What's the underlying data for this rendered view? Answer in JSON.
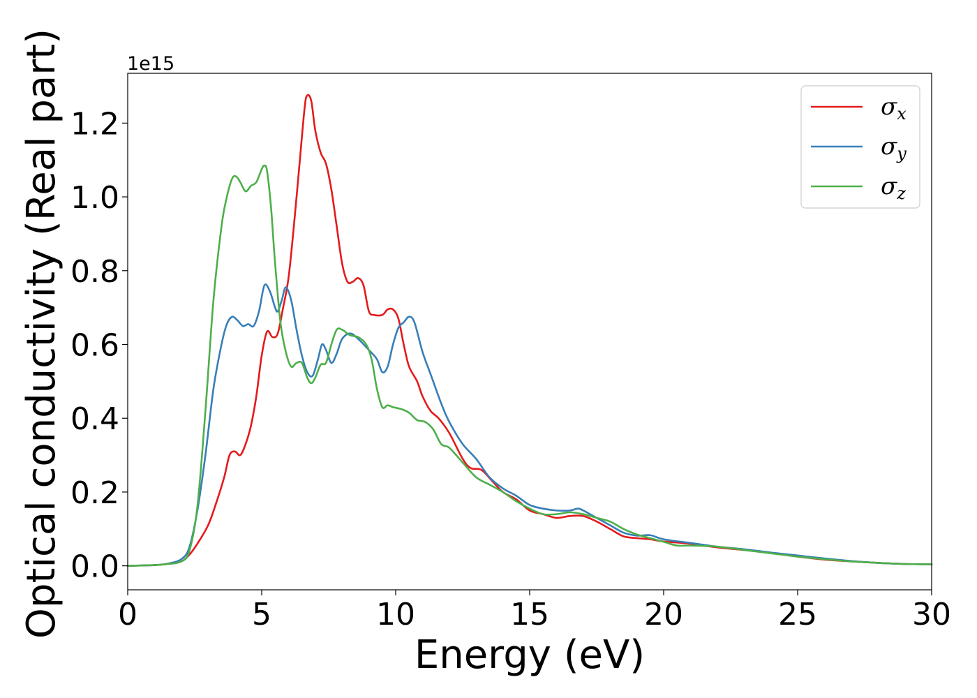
{
  "chart_data": {
    "type": "line",
    "title": "",
    "xlabel": "Energy (eV)",
    "ylabel": "Optical conductivity (Real part)",
    "y_offset_label": "1e15",
    "y_scale": 1000000000000000.0,
    "xlim": [
      0,
      30
    ],
    "ylim": [
      -0.065,
      1.335
    ],
    "x_ticks": [
      0,
      5,
      10,
      15,
      20,
      25,
      30
    ],
    "x_tick_labels": [
      "0",
      "5",
      "10",
      "15",
      "20",
      "25",
      "30"
    ],
    "y_ticks": [
      0.0,
      0.2,
      0.4,
      0.6,
      0.8,
      1.0,
      1.2
    ],
    "y_tick_labels": [
      "0.0",
      "0.2",
      "0.4",
      "0.6",
      "0.8",
      "1.0",
      "1.2"
    ],
    "grid": false,
    "legend_position": "top-right",
    "series": [
      {
        "name": "σx",
        "symbol": "σ",
        "subscript": "x",
        "color": "#e41a1c",
        "points": [
          [
            0,
            0
          ],
          [
            1,
            0.002
          ],
          [
            1.5,
            0.005
          ],
          [
            2,
            0.012
          ],
          [
            2.3,
            0.03
          ],
          [
            2.6,
            0.06
          ],
          [
            3.0,
            0.11
          ],
          [
            3.3,
            0.17
          ],
          [
            3.6,
            0.24
          ],
          [
            3.8,
            0.3
          ],
          [
            4.0,
            0.31
          ],
          [
            4.2,
            0.3
          ],
          [
            4.4,
            0.33
          ],
          [
            4.6,
            0.38
          ],
          [
            4.8,
            0.46
          ],
          [
            5.0,
            0.57
          ],
          [
            5.2,
            0.635
          ],
          [
            5.4,
            0.62
          ],
          [
            5.6,
            0.63
          ],
          [
            5.8,
            0.7
          ],
          [
            6.0,
            0.78
          ],
          [
            6.2,
            0.92
          ],
          [
            6.4,
            1.08
          ],
          [
            6.6,
            1.24
          ],
          [
            6.7,
            1.275
          ],
          [
            6.85,
            1.26
          ],
          [
            7.0,
            1.18
          ],
          [
            7.2,
            1.12
          ],
          [
            7.4,
            1.09
          ],
          [
            7.6,
            1.02
          ],
          [
            7.8,
            0.92
          ],
          [
            8.0,
            0.82
          ],
          [
            8.2,
            0.77
          ],
          [
            8.4,
            0.77
          ],
          [
            8.6,
            0.78
          ],
          [
            8.8,
            0.76
          ],
          [
            9.0,
            0.69
          ],
          [
            9.2,
            0.68
          ],
          [
            9.5,
            0.68
          ],
          [
            9.7,
            0.695
          ],
          [
            9.9,
            0.695
          ],
          [
            10.1,
            0.67
          ],
          [
            10.3,
            0.6
          ],
          [
            10.5,
            0.54
          ],
          [
            10.8,
            0.5
          ],
          [
            11.0,
            0.46
          ],
          [
            11.3,
            0.42
          ],
          [
            11.6,
            0.4
          ],
          [
            12.0,
            0.36
          ],
          [
            12.5,
            0.29
          ],
          [
            12.8,
            0.265
          ],
          [
            13.2,
            0.26
          ],
          [
            13.6,
            0.23
          ],
          [
            14.0,
            0.2
          ],
          [
            14.5,
            0.18
          ],
          [
            15.0,
            0.15
          ],
          [
            15.5,
            0.14
          ],
          [
            16.0,
            0.13
          ],
          [
            16.5,
            0.135
          ],
          [
            17.0,
            0.135
          ],
          [
            17.5,
            0.12
          ],
          [
            18.0,
            0.1
          ],
          [
            18.5,
            0.08
          ],
          [
            19.0,
            0.075
          ],
          [
            19.5,
            0.072
          ],
          [
            20,
            0.066
          ],
          [
            21,
            0.06
          ],
          [
            22,
            0.05
          ],
          [
            23,
            0.043
          ],
          [
            24,
            0.035
          ],
          [
            25,
            0.025
          ],
          [
            26,
            0.017
          ],
          [
            27,
            0.012
          ],
          [
            28,
            0.008
          ],
          [
            29,
            0.005
          ],
          [
            30,
            0.004
          ]
        ]
      },
      {
        "name": "σy",
        "symbol": "σ",
        "subscript": "y",
        "color": "#377eb8",
        "points": [
          [
            0,
            0
          ],
          [
            1,
            0.002
          ],
          [
            1.5,
            0.006
          ],
          [
            2,
            0.018
          ],
          [
            2.3,
            0.05
          ],
          [
            2.6,
            0.15
          ],
          [
            2.9,
            0.3
          ],
          [
            3.2,
            0.48
          ],
          [
            3.5,
            0.6
          ],
          [
            3.7,
            0.655
          ],
          [
            3.9,
            0.675
          ],
          [
            4.1,
            0.665
          ],
          [
            4.3,
            0.65
          ],
          [
            4.5,
            0.655
          ],
          [
            4.7,
            0.65
          ],
          [
            4.9,
            0.69
          ],
          [
            5.1,
            0.76
          ],
          [
            5.3,
            0.745
          ],
          [
            5.5,
            0.7
          ],
          [
            5.6,
            0.69
          ],
          [
            5.75,
            0.72
          ],
          [
            5.9,
            0.755
          ],
          [
            6.1,
            0.72
          ],
          [
            6.3,
            0.64
          ],
          [
            6.5,
            0.57
          ],
          [
            6.7,
            0.525
          ],
          [
            6.9,
            0.515
          ],
          [
            7.1,
            0.56
          ],
          [
            7.25,
            0.6
          ],
          [
            7.4,
            0.585
          ],
          [
            7.6,
            0.55
          ],
          [
            7.8,
            0.575
          ],
          [
            8.0,
            0.615
          ],
          [
            8.3,
            0.63
          ],
          [
            8.6,
            0.615
          ],
          [
            9.0,
            0.585
          ],
          [
            9.3,
            0.56
          ],
          [
            9.5,
            0.525
          ],
          [
            9.7,
            0.54
          ],
          [
            9.9,
            0.6
          ],
          [
            10.1,
            0.645
          ],
          [
            10.3,
            0.66
          ],
          [
            10.5,
            0.675
          ],
          [
            10.7,
            0.66
          ],
          [
            11.0,
            0.58
          ],
          [
            11.3,
            0.52
          ],
          [
            11.7,
            0.44
          ],
          [
            12.0,
            0.39
          ],
          [
            12.5,
            0.33
          ],
          [
            13.0,
            0.29
          ],
          [
            13.5,
            0.24
          ],
          [
            14.0,
            0.21
          ],
          [
            14.5,
            0.19
          ],
          [
            15.0,
            0.165
          ],
          [
            15.5,
            0.155
          ],
          [
            16.0,
            0.15
          ],
          [
            16.5,
            0.15
          ],
          [
            16.8,
            0.155
          ],
          [
            17.0,
            0.15
          ],
          [
            17.5,
            0.13
          ],
          [
            18.0,
            0.11
          ],
          [
            18.5,
            0.09
          ],
          [
            19.0,
            0.082
          ],
          [
            19.5,
            0.083
          ],
          [
            20.0,
            0.072
          ],
          [
            21,
            0.062
          ],
          [
            22,
            0.052
          ],
          [
            23,
            0.045
          ],
          [
            24,
            0.036
          ],
          [
            25,
            0.028
          ],
          [
            26,
            0.02
          ],
          [
            27,
            0.013
          ],
          [
            28,
            0.008
          ],
          [
            29,
            0.005
          ],
          [
            30,
            0.004
          ]
        ]
      },
      {
        "name": "σz",
        "symbol": "σ",
        "subscript": "z",
        "color": "#4daf4a",
        "points": [
          [
            0,
            0
          ],
          [
            1,
            0.002
          ],
          [
            1.5,
            0.005
          ],
          [
            2,
            0.012
          ],
          [
            2.3,
            0.04
          ],
          [
            2.6,
            0.16
          ],
          [
            2.9,
            0.42
          ],
          [
            3.2,
            0.72
          ],
          [
            3.5,
            0.92
          ],
          [
            3.7,
            1.0
          ],
          [
            3.9,
            1.05
          ],
          [
            4.05,
            1.055
          ],
          [
            4.2,
            1.04
          ],
          [
            4.4,
            1.015
          ],
          [
            4.6,
            1.03
          ],
          [
            4.8,
            1.04
          ],
          [
            5.0,
            1.075
          ],
          [
            5.1,
            1.085
          ],
          [
            5.2,
            1.07
          ],
          [
            5.35,
            0.97
          ],
          [
            5.5,
            0.82
          ],
          [
            5.7,
            0.66
          ],
          [
            5.9,
            0.58
          ],
          [
            6.1,
            0.54
          ],
          [
            6.3,
            0.55
          ],
          [
            6.5,
            0.55
          ],
          [
            6.7,
            0.51
          ],
          [
            6.85,
            0.495
          ],
          [
            7.0,
            0.51
          ],
          [
            7.2,
            0.545
          ],
          [
            7.4,
            0.55
          ],
          [
            7.6,
            0.6
          ],
          [
            7.8,
            0.64
          ],
          [
            8.0,
            0.64
          ],
          [
            8.3,
            0.625
          ],
          [
            8.6,
            0.62
          ],
          [
            8.9,
            0.6
          ],
          [
            9.1,
            0.56
          ],
          [
            9.3,
            0.48
          ],
          [
            9.5,
            0.43
          ],
          [
            9.7,
            0.435
          ],
          [
            9.9,
            0.43
          ],
          [
            10.2,
            0.425
          ],
          [
            10.5,
            0.415
          ],
          [
            10.8,
            0.395
          ],
          [
            11.1,
            0.39
          ],
          [
            11.4,
            0.37
          ],
          [
            11.7,
            0.33
          ],
          [
            12.0,
            0.32
          ],
          [
            12.5,
            0.28
          ],
          [
            13.0,
            0.24
          ],
          [
            13.5,
            0.22
          ],
          [
            14.0,
            0.2
          ],
          [
            14.5,
            0.175
          ],
          [
            15.0,
            0.155
          ],
          [
            15.5,
            0.14
          ],
          [
            16.0,
            0.14
          ],
          [
            16.5,
            0.145
          ],
          [
            17.0,
            0.14
          ],
          [
            17.5,
            0.13
          ],
          [
            18.0,
            0.12
          ],
          [
            18.5,
            0.1
          ],
          [
            19.0,
            0.085
          ],
          [
            19.5,
            0.075
          ],
          [
            20.0,
            0.065
          ],
          [
            20.5,
            0.055
          ],
          [
            21,
            0.055
          ],
          [
            22,
            0.052
          ],
          [
            23,
            0.043
          ],
          [
            24,
            0.034
          ],
          [
            25,
            0.025
          ],
          [
            26,
            0.018
          ],
          [
            27,
            0.012
          ],
          [
            28,
            0.008
          ],
          [
            29,
            0.005
          ],
          [
            30,
            0.004
          ]
        ]
      }
    ]
  }
}
